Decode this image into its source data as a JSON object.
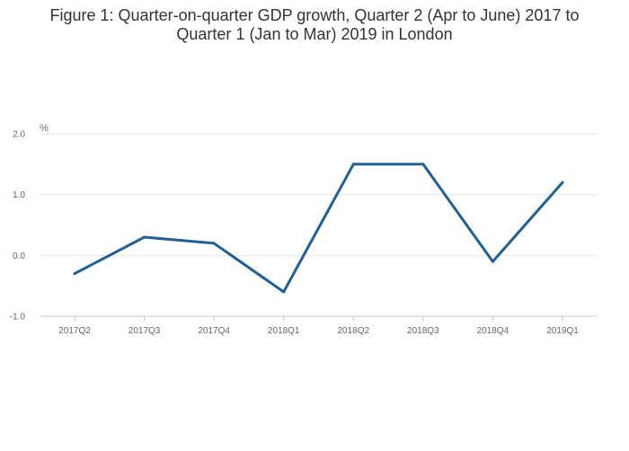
{
  "title_line1": "Figure 1: Quarter-on-quarter GDP growth, Quarter 2 (Apr to June) 2017 to",
  "title_line2": "Quarter 1 (Jan to Mar) 2019 in London",
  "chart_data": {
    "type": "line",
    "title": "Figure 1: Quarter-on-quarter GDP growth, Quarter 2 (Apr to June) 2017 to Quarter 1 (Jan to Mar) 2019 in London",
    "ylabel": "%",
    "xlabel": "",
    "categories": [
      "2017Q2",
      "2017Q3",
      "2017Q4",
      "2018Q1",
      "2018Q2",
      "2018Q3",
      "2018Q4",
      "2019Q1"
    ],
    "series": [
      {
        "values": [
          -0.3,
          0.3,
          0.2,
          -0.6,
          1.5,
          1.5,
          -0.1,
          1.2
        ],
        "color": "#206095"
      }
    ],
    "ylim": [
      -1.0,
      2.0
    ],
    "yticks": [
      "-1.0",
      "0.0",
      "1.0",
      "2.0"
    ],
    "grid": true,
    "legend": "none"
  }
}
